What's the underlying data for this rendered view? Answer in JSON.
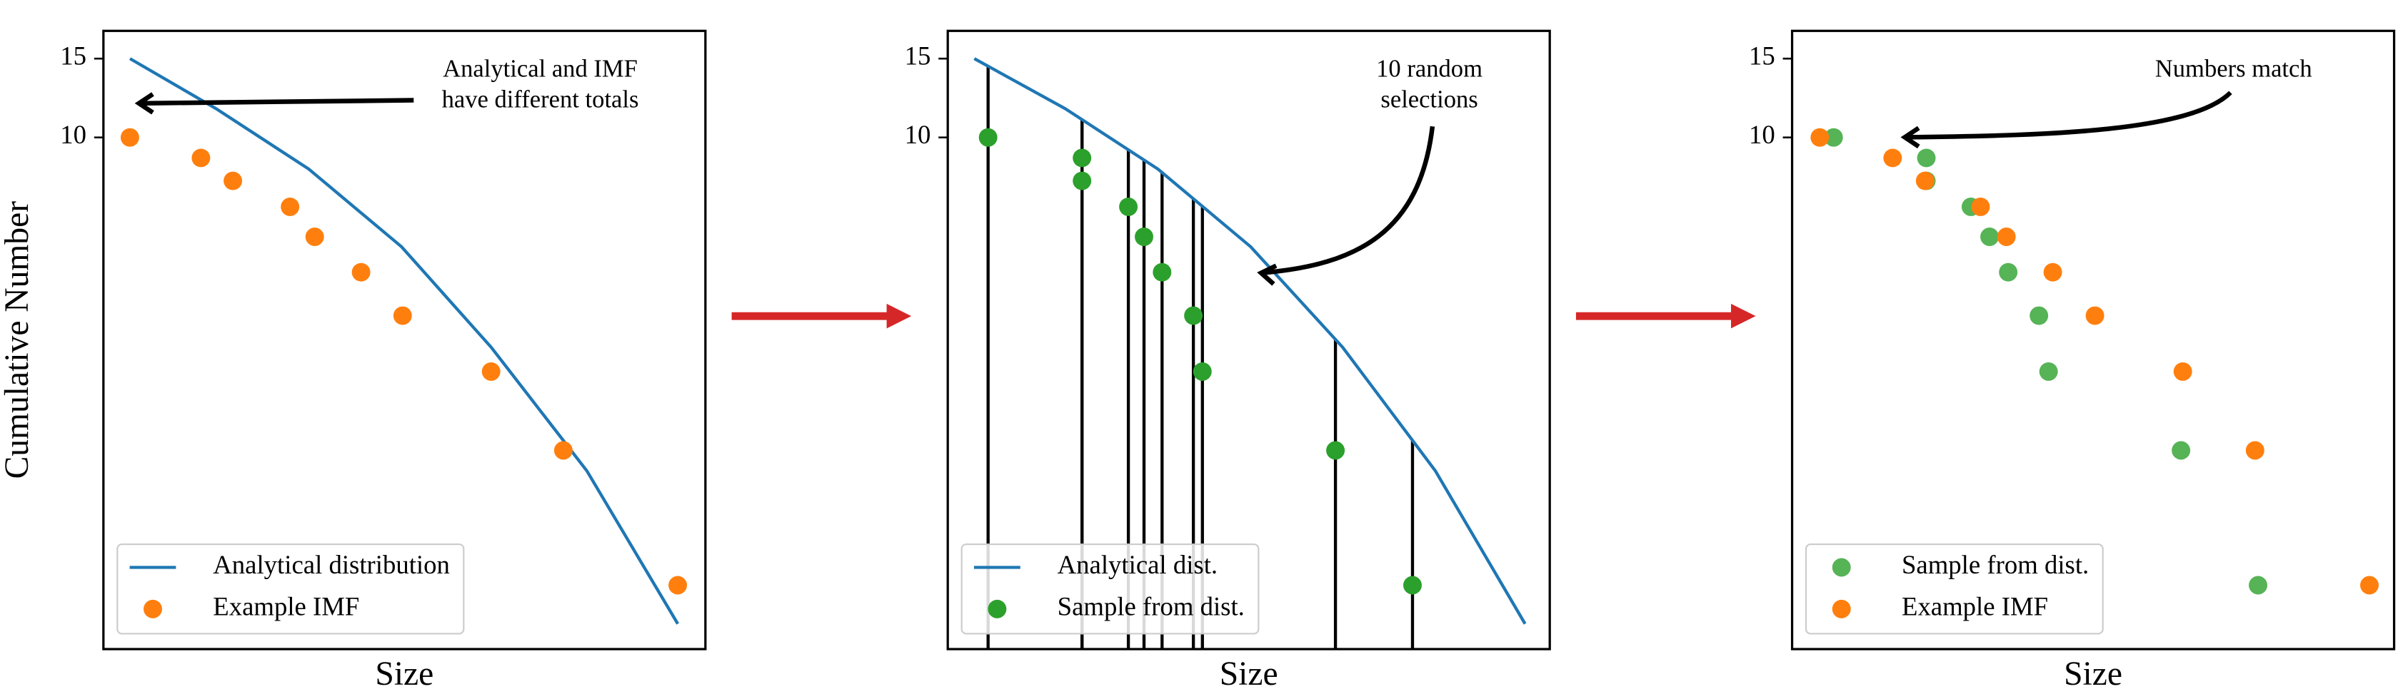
{
  "chart_data": [
    {
      "type": "line",
      "xlabel": "Size",
      "ylabel": "Cumulative Number",
      "xlim": [
        0,
        100
      ],
      "ylim": [
        0.72,
        17.3
      ],
      "yscale": "log",
      "yticks": [
        10,
        15
      ],
      "legend": "lower left",
      "series": [
        {
          "name": "Analytical distribution",
          "style": "line",
          "color": "#1f77b4",
          "x": [
            4.4,
            18.7,
            34.1,
            49.5,
            64.4,
            80.3,
            95.4
          ],
          "values": [
            15,
            11.6,
            8.5,
            5.7,
            3.4,
            1.8,
            0.82
          ]
        },
        {
          "name": "Example IMF",
          "style": "markers",
          "color": "#ff7f0e",
          "x": [
            4.4,
            16.2,
            21.5,
            31.0,
            35.1,
            42.8,
            49.7,
            64.4,
            76.4,
            95.4
          ],
          "values": [
            10,
            9,
            8,
            7,
            6,
            5,
            4,
            3,
            2,
            1
          ]
        }
      ],
      "annotation": [
        "Analytical and IMF",
        "have different totals"
      ]
    },
    {
      "type": "line",
      "xlabel": "Size",
      "xlim": [
        0,
        100
      ],
      "ylim": [
        0.72,
        17.3
      ],
      "yscale": "log",
      "yticks": [
        10,
        15
      ],
      "legend": "lower left",
      "sample_lines": true,
      "series": [
        {
          "name": "Analytical dist.",
          "style": "line",
          "color": "#1f77b4",
          "x": [
            4.4,
            19.5,
            34.9,
            50.3,
            65.6,
            81.0,
            95.9
          ],
          "values": [
            15,
            11.6,
            8.5,
            5.7,
            3.4,
            1.8,
            0.82
          ]
        },
        {
          "name": "Sample from dist.",
          "style": "markers",
          "color": "#2ca02c",
          "x": [
            6.7,
            22.3,
            22.3,
            30.0,
            32.6,
            35.6,
            40.8,
            42.3,
            64.4,
            77.2
          ],
          "values": [
            10,
            9,
            8,
            7,
            6,
            5,
            4,
            3,
            2,
            1
          ]
        }
      ],
      "annotation": [
        "10 random",
        "selections"
      ]
    },
    {
      "type": "scatter",
      "xlabel": "Size",
      "xlim": [
        0,
        100
      ],
      "ylim": [
        0.72,
        17.3
      ],
      "yscale": "log",
      "yticks": [
        10,
        15
      ],
      "legend": "lower left",
      "series": [
        {
          "name": "Sample from dist.",
          "style": "markers",
          "color": "#2ca02c",
          "alpha": 0.8,
          "x": [
            6.9,
            22.3,
            22.3,
            29.7,
            32.8,
            35.9,
            41.0,
            42.6,
            64.6,
            77.4
          ],
          "values": [
            10,
            9,
            8,
            7,
            6,
            5,
            4,
            3,
            2,
            1
          ]
        },
        {
          "name": "Example IMF",
          "style": "markers",
          "color": "#ff7f0e",
          "x": [
            4.6,
            16.7,
            22.1,
            31.3,
            35.6,
            43.3,
            50.3,
            64.9,
            76.9,
            95.9
          ],
          "values": [
            10,
            9,
            8,
            7,
            6,
            5,
            4,
            3,
            2,
            1
          ]
        }
      ],
      "annotation": [
        "Numbers match"
      ]
    }
  ]
}
